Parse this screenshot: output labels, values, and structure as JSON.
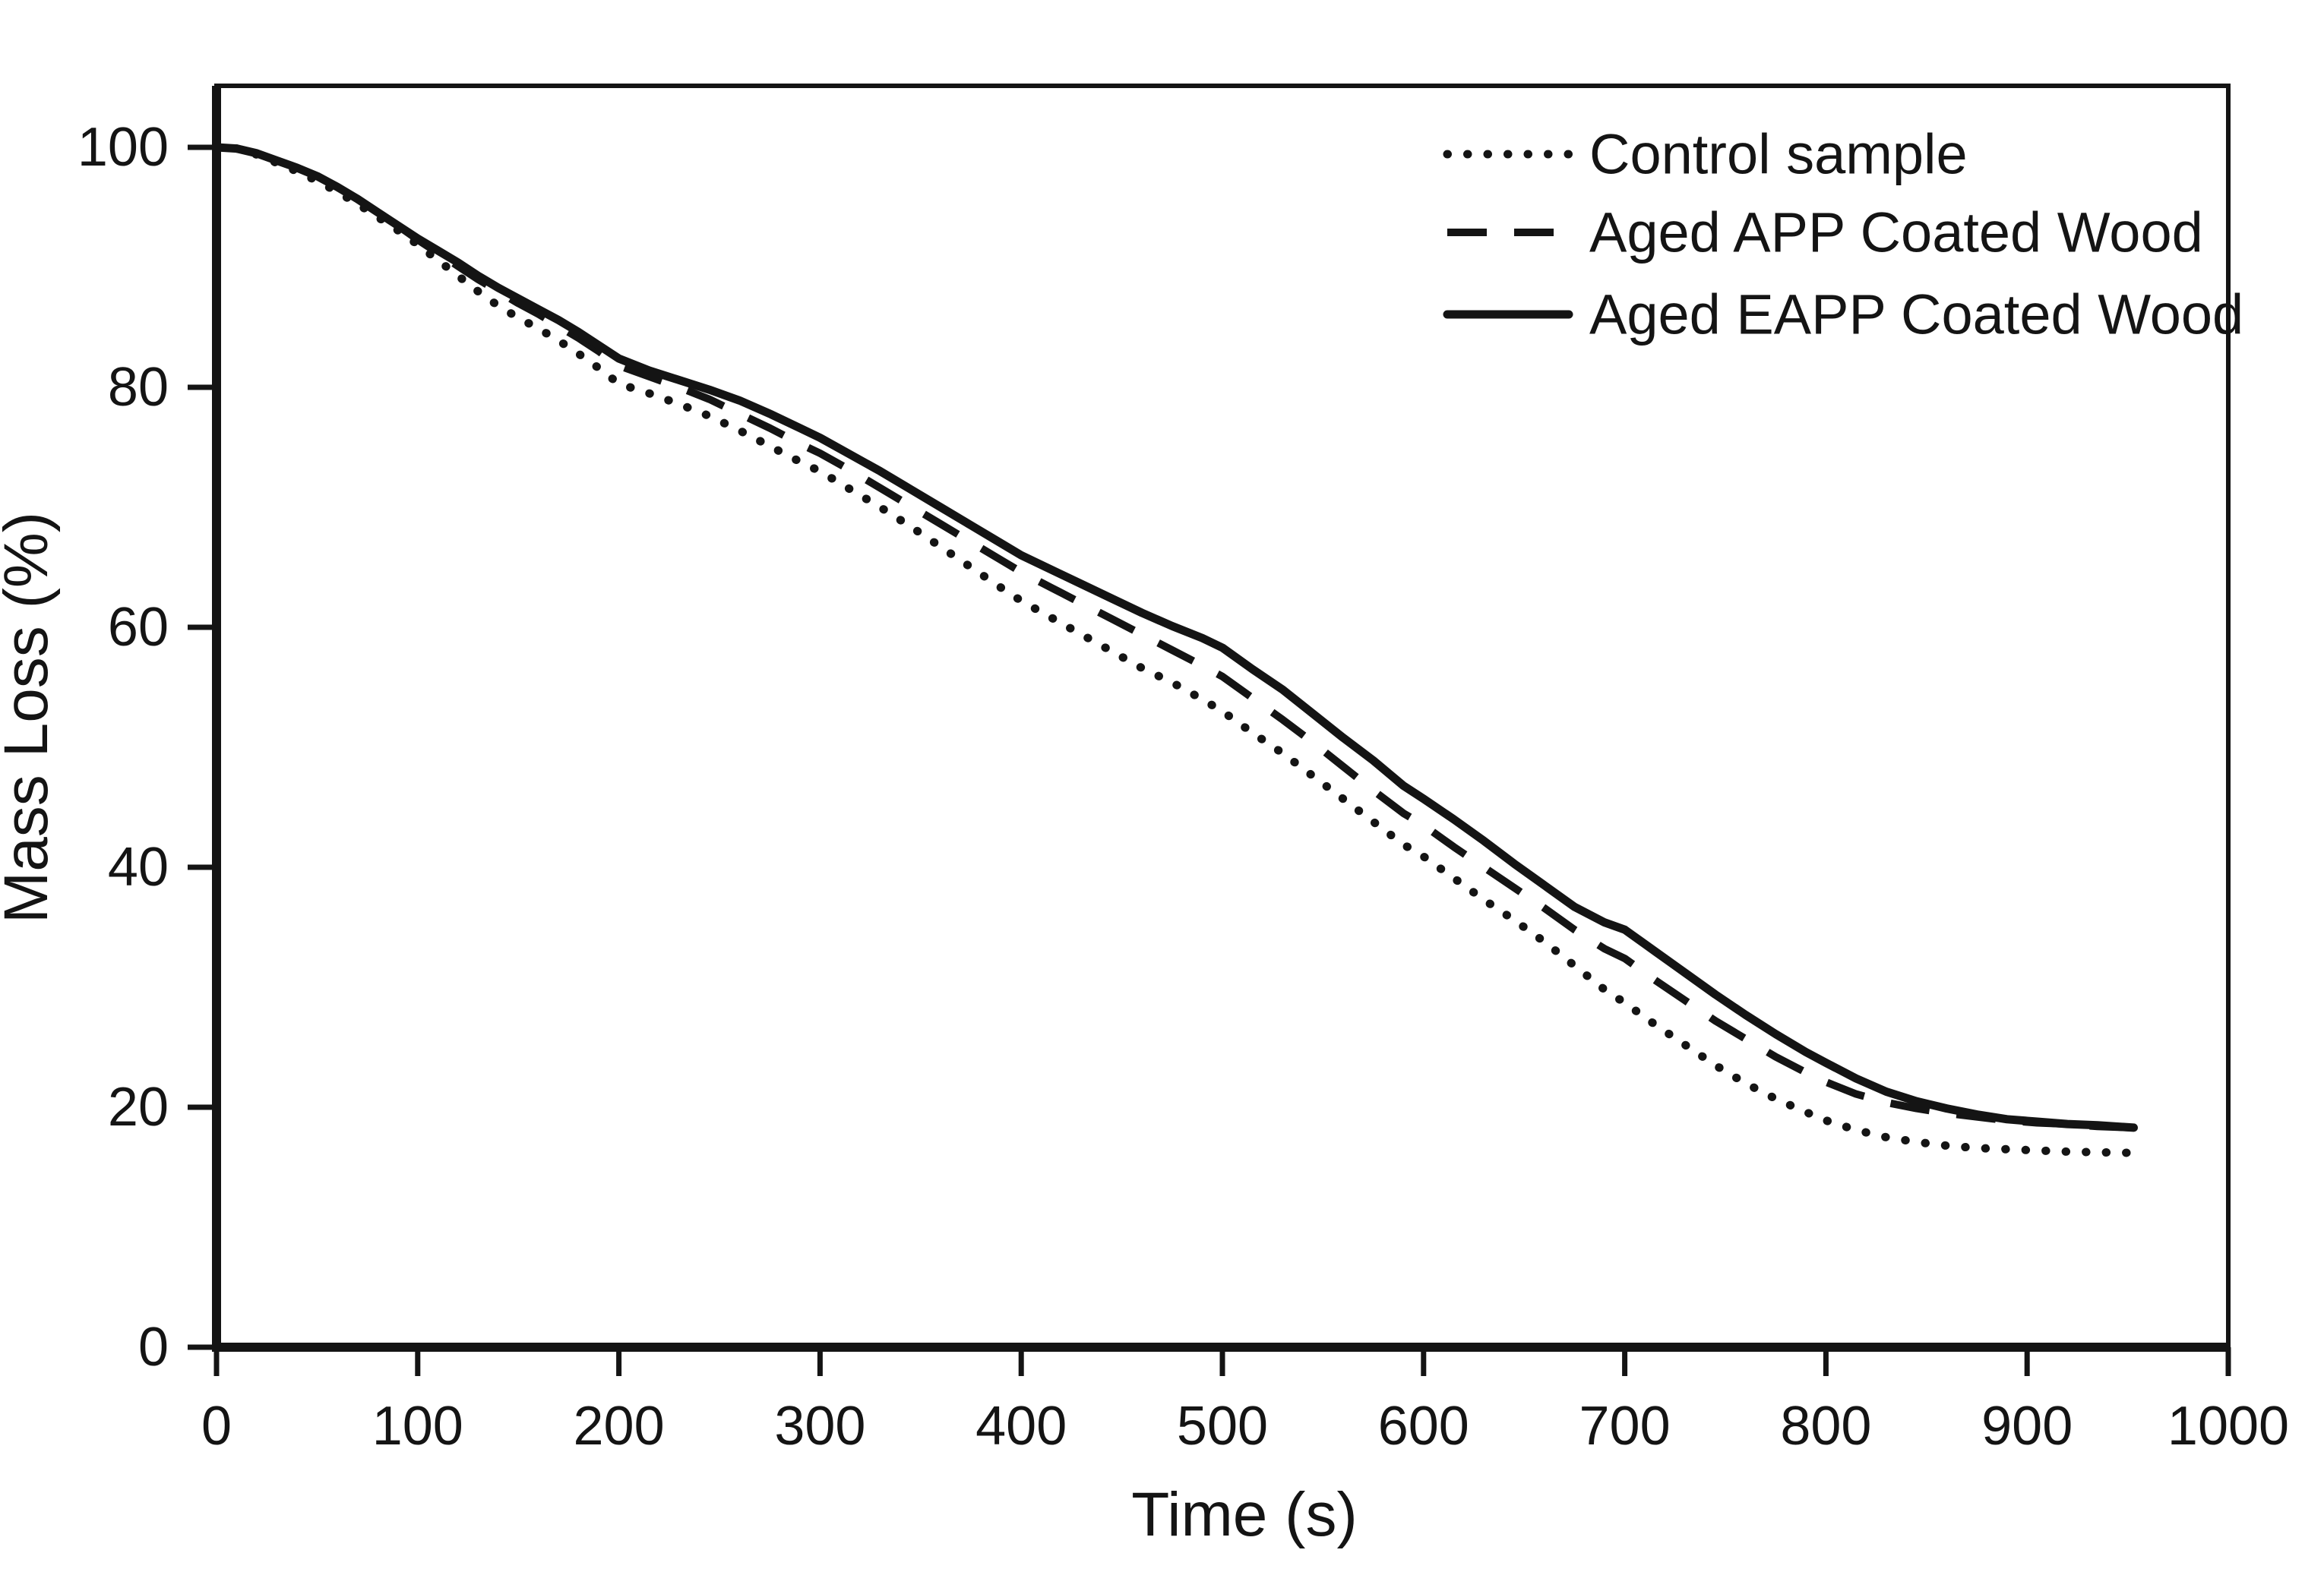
{
  "figure": {
    "background_color": "#ffffff",
    "ink_color": "#141414",
    "title": ""
  },
  "chart_data": {
    "type": "line",
    "title": "",
    "xlabel": "Time (s)",
    "ylabel": "Mass Loss (%)",
    "xlim": [
      0,
      1000
    ],
    "ylim": [
      0,
      100
    ],
    "x_ticks": [
      0,
      100,
      200,
      300,
      400,
      500,
      600,
      700,
      800,
      900,
      1000
    ],
    "y_ticks": [
      0,
      20,
      40,
      60,
      80,
      100
    ],
    "grid": false,
    "legend_position": "top-right-inside",
    "series": [
      {
        "name": "Control sample",
        "style": "dotted",
        "x": [
          0,
          10,
          20,
          30,
          40,
          50,
          60,
          70,
          80,
          90,
          100,
          110,
          120,
          130,
          140,
          150,
          160,
          170,
          180,
          190,
          200,
          215,
          230,
          245,
          260,
          275,
          290,
          300,
          315,
          330,
          345,
          360,
          375,
          390,
          400,
          415,
          430,
          445,
          460,
          475,
          490,
          500,
          515,
          530,
          545,
          560,
          575,
          590,
          600,
          615,
          630,
          645,
          660,
          675,
          690,
          700,
          715,
          730,
          745,
          760,
          775,
          790,
          800,
          815,
          830,
          845,
          860,
          875,
          890,
          905,
          920,
          935,
          950
        ],
        "y": [
          100,
          99.9,
          99.4,
          98.7,
          98.0,
          97.2,
          96.3,
          95.3,
          94.2,
          93.1,
          91.9,
          90.6,
          89.3,
          88.0,
          86.8,
          85.8,
          84.9,
          83.9,
          82.8,
          81.6,
          80.3,
          79.5,
          78.6,
          77.6,
          76.4,
          75.1,
          73.8,
          73.0,
          71.5,
          70.0,
          68.4,
          66.7,
          65.0,
          63.3,
          62.2,
          60.8,
          59.4,
          58.0,
          56.6,
          55.4,
          54.0,
          53.0,
          51.2,
          49.5,
          47.6,
          45.7,
          43.8,
          41.9,
          40.9,
          39.1,
          37.3,
          35.6,
          33.8,
          31.8,
          29.8,
          28.7,
          26.9,
          25.2,
          23.5,
          22.0,
          20.7,
          19.6,
          18.9,
          18.1,
          17.5,
          17.1,
          16.8,
          16.6,
          16.5,
          16.4,
          16.3,
          16.25,
          16.2
        ]
      },
      {
        "name": "Aged APP Coated Wood",
        "style": "dashed",
        "x": [
          0,
          10,
          20,
          30,
          40,
          50,
          60,
          70,
          80,
          90,
          100,
          110,
          120,
          130,
          140,
          150,
          160,
          170,
          180,
          190,
          200,
          215,
          230,
          245,
          260,
          275,
          290,
          300,
          315,
          330,
          345,
          360,
          375,
          390,
          400,
          415,
          430,
          445,
          460,
          475,
          490,
          500,
          515,
          530,
          545,
          560,
          575,
          590,
          600,
          615,
          630,
          645,
          660,
          675,
          690,
          700,
          715,
          730,
          745,
          760,
          775,
          790,
          800,
          815,
          830,
          845,
          860,
          875,
          890,
          905,
          920,
          935,
          953
        ],
        "y": [
          100,
          99.9,
          99.5,
          98.9,
          98.3,
          97.6,
          96.7,
          95.7,
          94.6,
          93.5,
          92.3,
          91.2,
          90.1,
          89.0,
          88.0,
          87.0,
          86.1,
          85.1,
          84.1,
          83.0,
          81.8,
          80.9,
          80.0,
          79.0,
          77.8,
          76.6,
          75.3,
          74.5,
          73.1,
          71.6,
          70.1,
          68.6,
          67.1,
          65.6,
          64.6,
          63.3,
          62.0,
          60.7,
          59.4,
          58.1,
          56.8,
          55.9,
          54.1,
          52.3,
          50.4,
          48.4,
          46.4,
          44.5,
          43.5,
          41.7,
          40.0,
          38.3,
          36.6,
          34.8,
          33.2,
          32.4,
          30.6,
          28.9,
          27.2,
          25.7,
          24.2,
          22.9,
          22.1,
          21.1,
          20.4,
          19.9,
          19.5,
          19.2,
          18.9,
          18.7,
          18.6,
          18.4,
          18.3
        ]
      },
      {
        "name": "Aged EAPP Coated Wood",
        "style": "solid",
        "x": [
          0,
          10,
          20,
          30,
          40,
          50,
          60,
          70,
          80,
          90,
          100,
          110,
          120,
          130,
          140,
          150,
          160,
          170,
          180,
          190,
          200,
          215,
          230,
          245,
          260,
          275,
          290,
          300,
          315,
          330,
          345,
          360,
          375,
          390,
          400,
          415,
          430,
          445,
          460,
          475,
          490,
          500,
          515,
          530,
          545,
          560,
          575,
          590,
          600,
          615,
          630,
          645,
          660,
          675,
          690,
          700,
          715,
          730,
          745,
          760,
          775,
          790,
          800,
          815,
          830,
          845,
          860,
          875,
          890,
          905,
          920,
          935,
          953
        ],
        "y": [
          100,
          99.9,
          99.5,
          98.9,
          98.3,
          97.6,
          96.7,
          95.7,
          94.6,
          93.5,
          92.4,
          91.4,
          90.4,
          89.3,
          88.3,
          87.4,
          86.5,
          85.6,
          84.6,
          83.5,
          82.4,
          81.4,
          80.6,
          79.8,
          78.9,
          77.8,
          76.6,
          75.8,
          74.4,
          73.0,
          71.5,
          70.0,
          68.5,
          67.0,
          66.0,
          64.8,
          63.6,
          62.4,
          61.2,
          60.1,
          59.1,
          58.3,
          56.5,
          54.8,
          52.8,
          50.8,
          48.9,
          46.8,
          45.7,
          44.0,
          42.2,
          40.3,
          38.5,
          36.7,
          35.4,
          34.8,
          33.0,
          31.2,
          29.4,
          27.7,
          26.1,
          24.6,
          23.7,
          22.4,
          21.3,
          20.5,
          19.9,
          19.4,
          19.0,
          18.8,
          18.6,
          18.5,
          18.3
        ]
      }
    ]
  }
}
